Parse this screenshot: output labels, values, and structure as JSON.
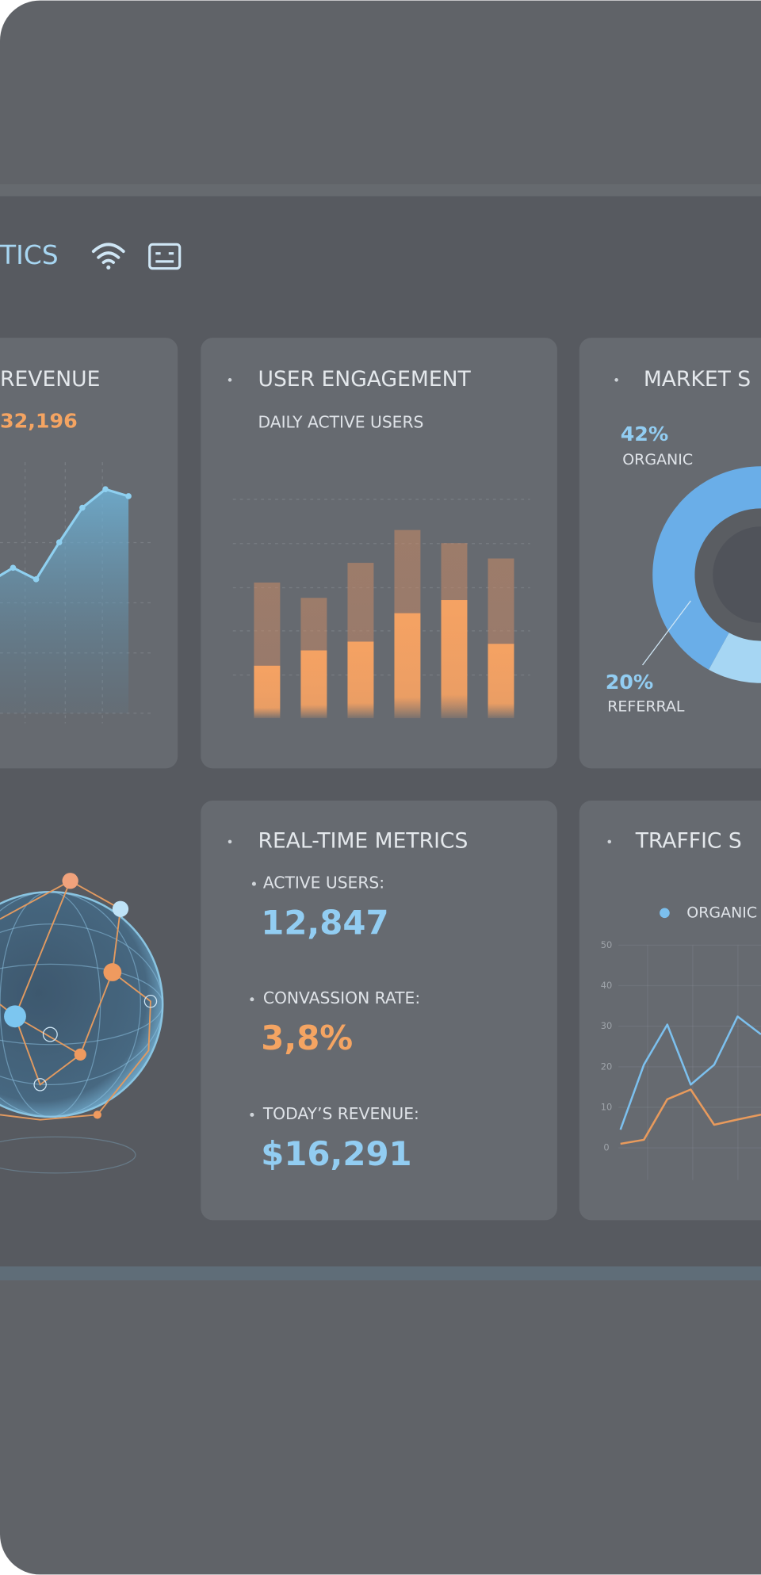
{
  "header": {
    "title": "TICS"
  },
  "revenue": {
    "title": "REVENUE",
    "total": "32,196",
    "chart": {
      "type": "line",
      "values": [
        57,
        63,
        58,
        74,
        89,
        97,
        94
      ],
      "ylim": [
        0,
        100
      ],
      "color": "#8fd0f0"
    }
  },
  "engagement": {
    "title": "USER ENGAGEMENT",
    "subtitle": "DAILY ACTIVE USERS",
    "chart": {
      "type": "bar",
      "ylim": [
        0,
        100
      ],
      "series": [
        {
          "color": "#c98a66",
          "values": [
            62,
            55,
            71,
            86,
            80,
            73
          ]
        },
        {
          "color": "#f5a263",
          "values": [
            24,
            31,
            35,
            48,
            54,
            34
          ]
        }
      ]
    }
  },
  "market": {
    "title": "MARKET S",
    "chart": {
      "type": "pie",
      "categories": [
        "ORGANIC",
        "REFERRAL"
      ],
      "values": [
        42,
        20
      ],
      "value_labels": [
        "42%",
        "20%"
      ],
      "colors": [
        "#6aaee8",
        "#a6d6f3"
      ]
    }
  },
  "metrics": {
    "title": "REAL-TIME METRICS",
    "items": [
      {
        "label": "ACTIVE USERS:",
        "value": "12,847",
        "color": "#92cdf2"
      },
      {
        "label": "CONVASSION RATE:",
        "value": "3,8%",
        "color": "#f4a462"
      },
      {
        "label": "TODAY’S REVENUE:",
        "value": "$16,291",
        "color": "#92cdf2"
      }
    ]
  },
  "traffic": {
    "title": "TRAFFIC S",
    "chart": {
      "type": "line",
      "ylim": [
        0,
        50
      ],
      "yticks": [
        0,
        10,
        20,
        30,
        40,
        50
      ],
      "grid": true,
      "series": [
        {
          "name": "ORGANIC",
          "color": "#7cc0ee",
          "values": [
            4.5,
            20.5,
            30.4,
            15.6,
            20.5,
            32.4,
            28
          ]
        },
        {
          "color": "#e89a5c",
          "values": [
            1,
            2,
            12,
            14.4,
            5.7,
            7,
            8.2
          ]
        }
      ]
    }
  }
}
